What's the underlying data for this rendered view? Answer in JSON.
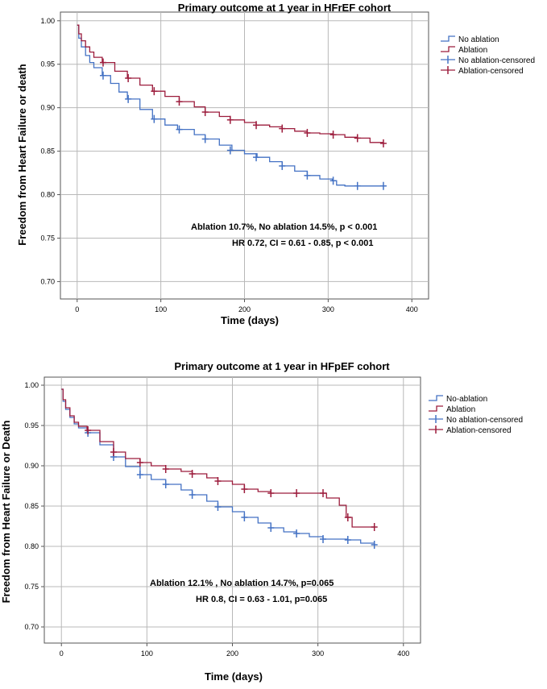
{
  "chart_data": [
    {
      "type": "line",
      "title": "Primary outcome at 1 year in HFrEF cohort",
      "xlabel": "Time (days)",
      "ylabel": "Freedom from Heart Failure or death",
      "xlim": [
        -20,
        420
      ],
      "ylim": [
        0.68,
        1.01
      ],
      "xticks": [
        "0",
        "100",
        "200",
        "300",
        "400"
      ],
      "yticks": [
        "0.70",
        "0.75",
        "0.80",
        "0.85",
        "0.90",
        "0.95",
        "1.00"
      ],
      "grid": true,
      "legend_position": "right",
      "legend": [
        "No ablation",
        "Ablation",
        "No ablation-censored",
        "Ablation-censored"
      ],
      "annotations": [
        "Ablation 10.7%, No ablation 14.5%, p < 0.001",
        "HR 0.72, CI = 0.61 - 0.85, p < 0.001"
      ],
      "series": [
        {
          "name": "No ablation",
          "color": "#4472c4",
          "x": [
            0,
            2,
            5,
            10,
            15,
            20,
            30,
            40,
            50,
            60,
            75,
            90,
            105,
            120,
            140,
            153,
            170,
            185,
            200,
            215,
            230,
            245,
            260,
            275,
            290,
            305,
            310,
            320,
            335,
            366
          ],
          "y": [
            0.995,
            0.98,
            0.97,
            0.96,
            0.952,
            0.946,
            0.937,
            0.928,
            0.918,
            0.91,
            0.898,
            0.887,
            0.88,
            0.875,
            0.869,
            0.864,
            0.857,
            0.851,
            0.847,
            0.843,
            0.838,
            0.833,
            0.827,
            0.822,
            0.818,
            0.816,
            0.811,
            0.81,
            0.81,
            0.81
          ],
          "censored_x": [
            31,
            61,
            92,
            122,
            153,
            183,
            214,
            245,
            275,
            306,
            335,
            366
          ],
          "censored_y": [
            0.937,
            0.91,
            0.887,
            0.875,
            0.864,
            0.851,
            0.843,
            0.833,
            0.822,
            0.816,
            0.81,
            0.81
          ]
        },
        {
          "name": "Ablation",
          "color": "#9c1c3c",
          "x": [
            0,
            2,
            5,
            10,
            15,
            20,
            30,
            45,
            60,
            75,
            90,
            105,
            122,
            140,
            153,
            170,
            183,
            200,
            214,
            230,
            245,
            260,
            275,
            290,
            306,
            320,
            335,
            350,
            366
          ],
          "y": [
            0.995,
            0.985,
            0.977,
            0.97,
            0.964,
            0.958,
            0.952,
            0.942,
            0.934,
            0.926,
            0.919,
            0.913,
            0.907,
            0.901,
            0.895,
            0.89,
            0.886,
            0.883,
            0.88,
            0.878,
            0.876,
            0.873,
            0.871,
            0.87,
            0.869,
            0.866,
            0.865,
            0.86,
            0.859
          ],
          "censored_x": [
            31,
            61,
            92,
            122,
            153,
            183,
            214,
            245,
            275,
            306,
            335,
            366
          ],
          "censored_y": [
            0.952,
            0.934,
            0.919,
            0.907,
            0.895,
            0.886,
            0.88,
            0.876,
            0.871,
            0.869,
            0.865,
            0.859
          ]
        }
      ]
    },
    {
      "type": "line",
      "title": "Primary outcome at 1 year in HFpEF cohort",
      "xlabel": "Time (days)",
      "ylabel": "Freedom from Heart Failure or Death",
      "xlim": [
        -20,
        420
      ],
      "ylim": [
        0.68,
        1.01
      ],
      "xticks": [
        "0",
        "100",
        "200",
        "300",
        "400"
      ],
      "yticks": [
        "0.70",
        "0.75",
        "0.80",
        "0.85",
        "0.90",
        "0.95",
        "1.00"
      ],
      "grid": true,
      "legend_position": "right",
      "legend": [
        "No-ablation",
        "Ablation",
        "No ablation-censored",
        "Ablation-censored"
      ],
      "annotations": [
        "Ablation 12.1% , No ablation 14.7%, p=0.065",
        "HR 0.8, CI = 0.63 - 1.01, p=0.065"
      ],
      "series": [
        {
          "name": "No-ablation",
          "color": "#4472c4",
          "x": [
            0,
            2,
            5,
            10,
            15,
            20,
            30,
            45,
            61,
            75,
            92,
            105,
            122,
            140,
            153,
            170,
            183,
            200,
            214,
            230,
            245,
            260,
            275,
            290,
            306,
            320,
            335,
            350,
            366
          ],
          "y": [
            0.995,
            0.98,
            0.97,
            0.96,
            0.952,
            0.947,
            0.941,
            0.926,
            0.911,
            0.899,
            0.889,
            0.883,
            0.877,
            0.87,
            0.864,
            0.856,
            0.849,
            0.843,
            0.836,
            0.829,
            0.823,
            0.818,
            0.816,
            0.812,
            0.809,
            0.809,
            0.808,
            0.804,
            0.802
          ],
          "censored_x": [
            31,
            61,
            92,
            122,
            153,
            183,
            214,
            245,
            275,
            306,
            335,
            366
          ],
          "censored_y": [
            0.941,
            0.911,
            0.889,
            0.877,
            0.864,
            0.849,
            0.836,
            0.823,
            0.816,
            0.809,
            0.808,
            0.802
          ]
        },
        {
          "name": "Ablation",
          "color": "#9c1c3c",
          "x": [
            0,
            2,
            5,
            10,
            15,
            20,
            30,
            45,
            61,
            75,
            92,
            105,
            122,
            140,
            153,
            170,
            183,
            200,
            214,
            230,
            245,
            260,
            275,
            290,
            306,
            310,
            325,
            333,
            340,
            366
          ],
          "y": [
            0.995,
            0.982,
            0.972,
            0.962,
            0.954,
            0.949,
            0.944,
            0.93,
            0.917,
            0.909,
            0.904,
            0.9,
            0.896,
            0.893,
            0.89,
            0.885,
            0.881,
            0.877,
            0.871,
            0.868,
            0.866,
            0.866,
            0.866,
            0.866,
            0.866,
            0.86,
            0.851,
            0.836,
            0.824,
            0.824
          ],
          "censored_x": [
            31,
            61,
            92,
            122,
            153,
            183,
            214,
            245,
            275,
            306,
            335,
            366
          ],
          "censored_y": [
            0.944,
            0.917,
            0.904,
            0.896,
            0.89,
            0.881,
            0.871,
            0.866,
            0.866,
            0.866,
            0.836,
            0.824
          ]
        }
      ]
    }
  ]
}
